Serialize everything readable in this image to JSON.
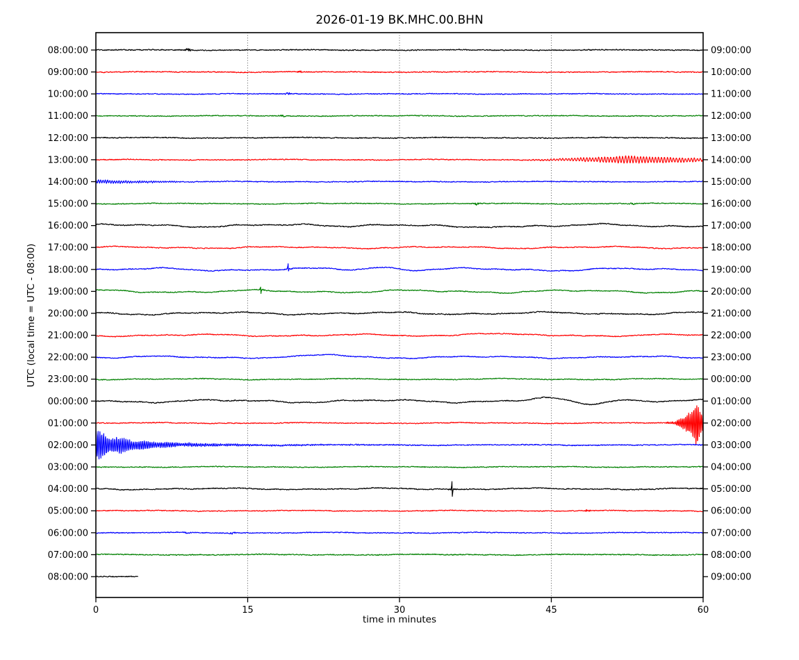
{
  "chart_data": {
    "type": "line",
    "subtype": "helicorder-dayplot",
    "title": "2026-01-19 BK.MHC.00.BHN",
    "xlabel": "time in minutes",
    "ylabel": "UTC (local time = UTC - 08:00)",
    "xlim": [
      0,
      60
    ],
    "x_ticks": [
      0,
      15,
      30,
      45,
      60
    ],
    "grid_minutes": [
      15,
      30,
      45
    ],
    "grid_style": "dotted-vertical",
    "legend": "none",
    "color_cycle": [
      "#000000",
      "#ff0000",
      "#0000ff",
      "#008000"
    ],
    "rows": [
      {
        "left_label": "08:00:00",
        "right_label": "09:00:00",
        "color": "#000000",
        "noise_amp": 1.0,
        "wander_amp": 0.3,
        "events": [
          {
            "type": "blip",
            "at": 9.1,
            "amp": 2.5
          }
        ]
      },
      {
        "left_label": "09:00:00",
        "right_label": "10:00:00",
        "color": "#ff0000",
        "noise_amp": 1.0,
        "wander_amp": 0.3,
        "events": [
          {
            "type": "blip",
            "at": 20.2,
            "amp": 2.0
          }
        ]
      },
      {
        "left_label": "10:00:00",
        "right_label": "11:00:00",
        "color": "#0000ff",
        "noise_amp": 0.9,
        "wander_amp": 0.3,
        "events": [
          {
            "type": "blip",
            "at": 19.0,
            "amp": 1.8
          }
        ]
      },
      {
        "left_label": "11:00:00",
        "right_label": "12:00:00",
        "color": "#008000",
        "noise_amp": 0.9,
        "wander_amp": 0.3,
        "events": [
          {
            "type": "blip",
            "at": 18.4,
            "amp": 2.0
          }
        ]
      },
      {
        "left_label": "12:00:00",
        "right_label": "13:00:00",
        "color": "#000000",
        "noise_amp": 1.0,
        "wander_amp": 0.4,
        "events": []
      },
      {
        "left_label": "13:00:00",
        "right_label": "14:00:00",
        "color": "#ff0000",
        "noise_amp": 0.9,
        "wander_amp": 0.3,
        "events": [
          {
            "type": "spindle",
            "start": 40.5,
            "peak": 52.5,
            "amp": 5.0
          }
        ]
      },
      {
        "left_label": "14:00:00",
        "right_label": "15:00:00",
        "color": "#0000ff",
        "noise_amp": 0.9,
        "wander_amp": 0.3,
        "events": [
          {
            "type": "ripple",
            "end": 12,
            "amp": 2.2
          }
        ]
      },
      {
        "left_label": "15:00:00",
        "right_label": "16:00:00",
        "color": "#008000",
        "noise_amp": 0.9,
        "wander_amp": 0.4,
        "events": [
          {
            "type": "blip",
            "at": 37.6,
            "amp": 2.8
          },
          {
            "type": "blip",
            "at": 53.0,
            "amp": 1.5
          }
        ]
      },
      {
        "left_label": "16:00:00",
        "right_label": "17:00:00",
        "color": "#000000",
        "noise_amp": 1.0,
        "wander_amp": 1.6,
        "events": [
          {
            "type": "bump",
            "at": 27.0,
            "amp": 2.0,
            "width": 6
          },
          {
            "type": "dip",
            "at": 36.2,
            "amp": 4.0,
            "width": 6
          }
        ]
      },
      {
        "left_label": "17:00:00",
        "right_label": "18:00:00",
        "color": "#ff0000",
        "noise_amp": 0.9,
        "wander_amp": 1.0,
        "events": []
      },
      {
        "left_label": "18:00:00",
        "right_label": "19:00:00",
        "color": "#0000ff",
        "noise_amp": 0.9,
        "wander_amp": 1.5,
        "events": [
          {
            "type": "spike",
            "at": 19.0,
            "amp": 5.0
          },
          {
            "type": "bump",
            "at": 28.3,
            "amp": 4.0,
            "width": 5
          }
        ]
      },
      {
        "left_label": "19:00:00",
        "right_label": "20:00:00",
        "color": "#008000",
        "noise_amp": 0.9,
        "wander_amp": 1.5,
        "events": [
          {
            "type": "spike",
            "at": 16.3,
            "amp": 4.0
          }
        ]
      },
      {
        "left_label": "20:00:00",
        "right_label": "21:00:00",
        "color": "#000000",
        "noise_amp": 1.0,
        "wander_amp": 1.3,
        "events": []
      },
      {
        "left_label": "21:00:00",
        "right_label": "22:00:00",
        "color": "#ff0000",
        "noise_amp": 0.9,
        "wander_amp": 1.1,
        "events": [
          {
            "type": "bump",
            "at": 37.8,
            "amp": 3.0,
            "width": 6
          }
        ]
      },
      {
        "left_label": "22:00:00",
        "right_label": "23:00:00",
        "color": "#0000ff",
        "noise_amp": 0.9,
        "wander_amp": 1.1,
        "events": [
          {
            "type": "bump",
            "at": 23.0,
            "amp": 3.2,
            "width": 6
          }
        ]
      },
      {
        "left_label": "23:00:00",
        "right_label": "00:00:00",
        "color": "#008000",
        "noise_amp": 0.9,
        "wander_amp": 0.6,
        "events": []
      },
      {
        "left_label": "00:00:00",
        "right_label": "01:00:00",
        "color": "#000000",
        "noise_amp": 1.0,
        "wander_amp": 1.5,
        "events": [
          {
            "type": "bump",
            "at": 44.5,
            "amp": 3.5,
            "width": 5
          },
          {
            "type": "dip",
            "at": 48.5,
            "amp": 3.5,
            "width": 5
          },
          {
            "type": "bump",
            "at": 52.0,
            "amp": 3.0,
            "width": 4
          }
        ]
      },
      {
        "left_label": "01:00:00",
        "right_label": "02:00:00",
        "color": "#ff0000",
        "noise_amp": 0.9,
        "wander_amp": 0.4,
        "events": [
          {
            "type": "burst_end",
            "start": 56.3
          }
        ]
      },
      {
        "left_label": "02:00:00",
        "right_label": "03:00:00",
        "color": "#0000ff",
        "noise_amp": 1.0,
        "wander_amp": 0.4,
        "events": [
          {
            "type": "burst_decay",
            "amp": 19.0
          }
        ]
      },
      {
        "left_label": "03:00:00",
        "right_label": "04:00:00",
        "color": "#008000",
        "noise_amp": 0.9,
        "wander_amp": 0.4,
        "events": []
      },
      {
        "left_label": "04:00:00",
        "right_label": "05:00:00",
        "color": "#000000",
        "noise_amp": 1.0,
        "wander_amp": 0.8,
        "events": [
          {
            "type": "spike",
            "at": 35.2,
            "amp": 9.0
          }
        ]
      },
      {
        "left_label": "05:00:00",
        "right_label": "06:00:00",
        "color": "#ff0000",
        "noise_amp": 0.9,
        "wander_amp": 0.4,
        "events": [
          {
            "type": "blip",
            "at": 48.6,
            "amp": 2.8
          }
        ]
      },
      {
        "left_label": "06:00:00",
        "right_label": "07:00:00",
        "color": "#0000ff",
        "noise_amp": 0.9,
        "wander_amp": 0.4,
        "events": [
          {
            "type": "blip",
            "at": 9.0,
            "amp": 1.5
          },
          {
            "type": "blip",
            "at": 13.5,
            "amp": 1.6
          }
        ]
      },
      {
        "left_label": "07:00:00",
        "right_label": "08:00:00",
        "color": "#008000",
        "noise_amp": 1.0,
        "wander_amp": 0.4,
        "events": []
      },
      {
        "left_label": "08:00:00",
        "right_label": "09:00:00",
        "color": "#000000",
        "noise_amp": 1.0,
        "wander_amp": 0.3,
        "end_minute": 4.15,
        "events": []
      }
    ]
  }
}
